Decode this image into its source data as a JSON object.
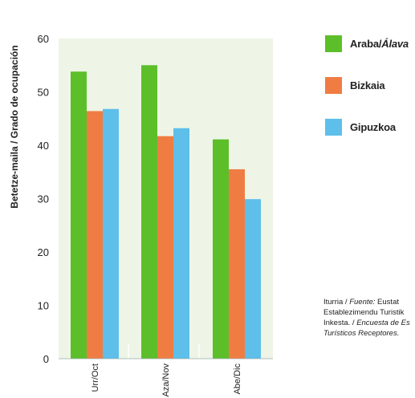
{
  "chart_data": {
    "type": "bar",
    "categories": [
      "Urr/Oct",
      "Aza/Nov",
      "Abe/Dic"
    ],
    "series": [
      {
        "name": "Araba/Álava",
        "values": [
          53.8,
          55.0,
          41.1
        ],
        "color": "#5cbf2a"
      },
      {
        "name": "Bizkaia",
        "values": [
          46.4,
          41.7,
          35.5
        ],
        "color": "#ef7d43"
      },
      {
        "name": "Gipuzkoa",
        "values": [
          46.8,
          43.2,
          29.9
        ],
        "color": "#5ebfea"
      }
    ],
    "ylabel": "Betetze-maila / Grado de ocupación",
    "ylim": [
      0,
      60
    ],
    "yticks": [
      "0",
      "10",
      "20",
      "30",
      "40",
      "50",
      "60"
    ],
    "plot_background": "#eef5e6",
    "grid": false,
    "legend_position": "right"
  },
  "legend": {
    "items": [
      {
        "main": "Araba/",
        "italic": "Álava"
      },
      {
        "main": "Bizkaia",
        "italic": ""
      },
      {
        "main": "Gipuzkoa",
        "italic": ""
      }
    ]
  },
  "source": {
    "line1_main": "Iturria / ",
    "line1_italic": "Fuente:",
    "line1_rest": " Eustat",
    "line2": "Establezimendu Turistik",
    "line3_main": "Inkesta. / ",
    "line3_italic": "Encuesta de Es",
    "line4_italic": "Turísticos Receptores."
  }
}
